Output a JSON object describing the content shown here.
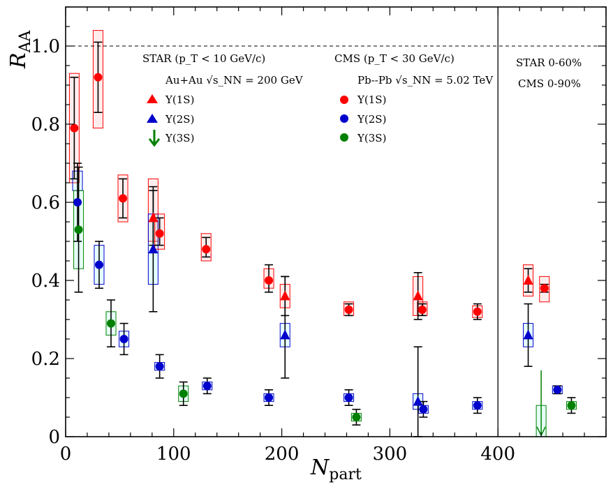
{
  "chart_data": {
    "type": "scatter",
    "xlabel_main": "N",
    "xlabel_sub": "part",
    "ylabel_main": "R",
    "ylabel_sub": "AA",
    "xlim": [
      0,
      500
    ],
    "ylim": [
      0,
      1.1
    ],
    "x_ticks": [
      "0",
      "100",
      "200",
      "300",
      "400"
    ],
    "y_ticks": [
      "0",
      "0.2",
      "0.4",
      "0.6",
      "0.8",
      "1.0"
    ],
    "reference_line_y": 1.0,
    "divider_x": 400,
    "colors": {
      "ups1s": "#ff0000",
      "ups2s": "#0000cc",
      "ups3s": "#008000"
    },
    "legend": {
      "star_title": "STAR (p_T < 10 GeV/c)",
      "star_system": "Au+Au √s_NN = 200 GeV",
      "cms_title": "CMS (p_T < 30 GeV/c)",
      "cms_system": "Pb--Pb √s_NN = 5.02 TeV",
      "entries": [
        "Υ(1S)",
        "Υ(2S)",
        "Υ(3S)"
      ]
    },
    "centrality_labels": [
      "STAR 0-60%",
      "CMS 0-90%"
    ],
    "series": [
      {
        "name": "STAR Υ(1S)",
        "marker": "triangle",
        "color": "#ff0000",
        "points": [
          {
            "x": 81,
            "y": 0.56,
            "lo": 0.49,
            "hi": 0.63,
            "slo": 0.5,
            "shi": 0.66
          },
          {
            "x": 203,
            "y": 0.36,
            "lo": 0.31,
            "hi": 0.41,
            "slo": 0.33,
            "shi": 0.39
          },
          {
            "x": 326,
            "y": 0.36,
            "lo": 0.3,
            "hi": 0.42,
            "slo": 0.31,
            "shi": 0.41
          },
          {
            "x": 428,
            "y": 0.4,
            "lo": 0.37,
            "hi": 0.43,
            "slo": 0.36,
            "shi": 0.44
          }
        ]
      },
      {
        "name": "STAR Υ(2S)",
        "marker": "triangle",
        "color": "#0000cc",
        "points": [
          {
            "x": 81,
            "y": 0.48,
            "lo": 0.32,
            "hi": 0.64,
            "slo": 0.39,
            "shi": 0.57
          },
          {
            "x": 203,
            "y": 0.26,
            "lo": 0.15,
            "hi": 0.41,
            "slo": 0.23,
            "shi": 0.29
          },
          {
            "x": 326,
            "y": 0.09,
            "lo": 0.0,
            "hi": 0.23,
            "slo": 0.07,
            "shi": 0.11
          },
          {
            "x": 428,
            "y": 0.26,
            "lo": 0.18,
            "hi": 0.34,
            "slo": 0.23,
            "shi": 0.29
          }
        ]
      },
      {
        "name": "STAR Υ(3S) upper limit",
        "marker": "arrow",
        "color": "#008000",
        "points": [
          {
            "x": 440,
            "y": 0.17,
            "slo": 0.0,
            "shi": 0.08
          }
        ]
      },
      {
        "name": "CMS Υ(1S)",
        "marker": "circle",
        "color": "#ff0000",
        "points": [
          {
            "x": 8,
            "y": 0.79,
            "lo": 0.66,
            "hi": 0.92,
            "slo": 0.65,
            "shi": 0.93
          },
          {
            "x": 30,
            "y": 0.92,
            "lo": 0.83,
            "hi": 1.01,
            "slo": 0.79,
            "shi": 1.04
          },
          {
            "x": 53,
            "y": 0.61,
            "lo": 0.56,
            "hi": 0.66,
            "slo": 0.55,
            "shi": 0.67
          },
          {
            "x": 87,
            "y": 0.52,
            "lo": 0.49,
            "hi": 0.56,
            "slo": 0.48,
            "shi": 0.57
          },
          {
            "x": 130,
            "y": 0.48,
            "lo": 0.46,
            "hi": 0.51,
            "slo": 0.45,
            "shi": 0.52
          },
          {
            "x": 188,
            "y": 0.4,
            "lo": 0.37,
            "hi": 0.44,
            "slo": 0.38,
            "shi": 0.43
          },
          {
            "x": 262,
            "y": 0.325,
            "lo": 0.31,
            "hi": 0.34,
            "slo": 0.31,
            "shi": 0.345
          },
          {
            "x": 330,
            "y": 0.325,
            "lo": 0.31,
            "hi": 0.34,
            "slo": 0.31,
            "shi": 0.345
          },
          {
            "x": 381,
            "y": 0.32,
            "lo": 0.3,
            "hi": 0.34,
            "slo": 0.305,
            "shi": 0.335
          },
          {
            "x": 443,
            "y": 0.38,
            "lo": 0.37,
            "hi": 0.39,
            "slo": 0.345,
            "shi": 0.41
          }
        ]
      },
      {
        "name": "CMS Υ(2S)",
        "marker": "circle",
        "color": "#0000cc",
        "points": [
          {
            "x": 11,
            "y": 0.6,
            "lo": 0.5,
            "hi": 0.7,
            "slo": 0.63,
            "shi": 0.68
          },
          {
            "x": 31,
            "y": 0.44,
            "lo": 0.38,
            "hi": 0.5,
            "slo": 0.39,
            "shi": 0.49
          },
          {
            "x": 54,
            "y": 0.25,
            "lo": 0.21,
            "hi": 0.29,
            "slo": 0.23,
            "shi": 0.27
          },
          {
            "x": 87,
            "y": 0.18,
            "lo": 0.15,
            "hi": 0.21,
            "slo": 0.17,
            "shi": 0.19
          },
          {
            "x": 131,
            "y": 0.13,
            "lo": 0.11,
            "hi": 0.15,
            "slo": 0.12,
            "shi": 0.14
          },
          {
            "x": 188,
            "y": 0.1,
            "lo": 0.08,
            "hi": 0.12,
            "slo": 0.09,
            "shi": 0.11
          },
          {
            "x": 262,
            "y": 0.1,
            "lo": 0.08,
            "hi": 0.12,
            "slo": 0.09,
            "shi": 0.11
          },
          {
            "x": 331,
            "y": 0.07,
            "lo": 0.05,
            "hi": 0.09,
            "slo": 0.06,
            "shi": 0.08
          },
          {
            "x": 381,
            "y": 0.08,
            "lo": 0.06,
            "hi": 0.1,
            "slo": 0.07,
            "shi": 0.09
          },
          {
            "x": 455,
            "y": 0.12,
            "lo": 0.11,
            "hi": 0.13,
            "slo": 0.11,
            "shi": 0.13
          }
        ]
      },
      {
        "name": "CMS Υ(3S)",
        "marker": "circle",
        "color": "#008000",
        "points": [
          {
            "x": 12,
            "y": 0.53,
            "lo": 0.37,
            "hi": 0.69,
            "slo": 0.43,
            "shi": 0.63
          },
          {
            "x": 42,
            "y": 0.29,
            "lo": 0.23,
            "hi": 0.35,
            "slo": 0.26,
            "shi": 0.32
          },
          {
            "x": 109,
            "y": 0.11,
            "lo": 0.08,
            "hi": 0.14,
            "slo": 0.09,
            "shi": 0.13
          },
          {
            "x": 269,
            "y": 0.05,
            "lo": 0.03,
            "hi": 0.07,
            "slo": 0.04,
            "shi": 0.06
          },
          {
            "x": 468,
            "y": 0.08,
            "lo": 0.06,
            "hi": 0.1,
            "slo": 0.07,
            "shi": 0.09
          }
        ]
      }
    ]
  }
}
